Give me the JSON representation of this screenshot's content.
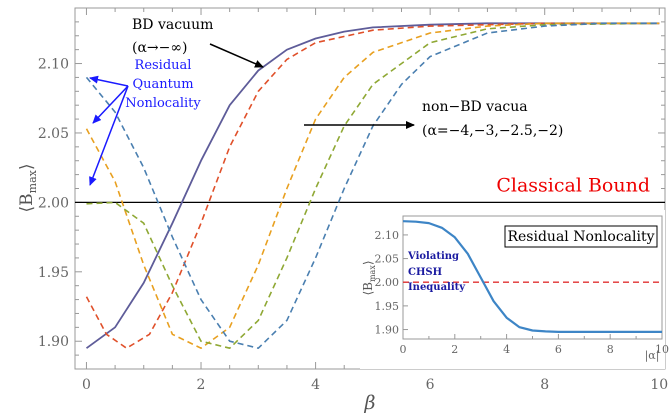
{
  "chart_data": [
    {
      "type": "line",
      "xlabel": "β",
      "ylabel": "⟨B",
      "ylabel_sub": "max",
      "ylabel_close": "⟩",
      "xlim": [
        -0.2,
        10.1
      ],
      "ylim": [
        1.88,
        2.14
      ],
      "xticks": [
        "0",
        "2",
        "4",
        "6",
        "8",
        "10"
      ],
      "yticks": [
        "1.90",
        "1.95",
        "2.00",
        "2.05",
        "2.10"
      ],
      "classical_bound": {
        "value": 2.0,
        "label": "Classical Bound",
        "color": "#ee0000"
      },
      "series": [
        {
          "name": "BD vacuum",
          "alpha": "-∞",
          "style": "solid",
          "color": "#5e5c99",
          "x": [
            0,
            0.5,
            1.0,
            1.5,
            2.0,
            2.5,
            3.0,
            3.5,
            4.0,
            4.5,
            5.0,
            6.0,
            7.0,
            8.0,
            10.0
          ],
          "y": [
            1.895,
            1.91,
            1.942,
            1.985,
            2.03,
            2.07,
            2.095,
            2.11,
            2.118,
            2.123,
            2.126,
            2.128,
            2.129,
            2.129,
            2.129
          ]
        },
        {
          "alpha": "-4",
          "style": "dashed",
          "color": "#e0502a",
          "x": [
            0,
            0.35,
            0.7,
            1.1,
            1.5,
            2.0,
            2.5,
            3.0,
            3.5,
            4.0,
            5.0,
            6.0,
            8.0,
            10.0
          ],
          "y": [
            1.932,
            1.905,
            1.895,
            1.905,
            1.935,
            1.985,
            2.04,
            2.08,
            2.103,
            2.115,
            2.124,
            2.127,
            2.129,
            2.129
          ]
        },
        {
          "alpha": "-3",
          "style": "dashed",
          "color": "#e8a020",
          "x": [
            0,
            0.5,
            1.0,
            1.5,
            2.0,
            2.5,
            3.0,
            3.5,
            4.0,
            4.5,
            5.0,
            6.0,
            7.0,
            8.0,
            10.0
          ],
          "y": [
            2.053,
            2.015,
            1.955,
            1.905,
            1.895,
            1.91,
            1.955,
            2.01,
            2.06,
            2.09,
            2.108,
            2.122,
            2.127,
            2.129,
            2.129
          ]
        },
        {
          "alpha": "-2.5",
          "style": "dashed",
          "color": "#8fa834",
          "x": [
            0,
            0.5,
            1.0,
            1.5,
            2.0,
            2.5,
            3.0,
            3.5,
            4.0,
            4.5,
            5.0,
            6.0,
            7.0,
            8.0,
            10.0
          ],
          "y": [
            1.999,
            2.0,
            1.985,
            1.94,
            1.9,
            1.895,
            1.915,
            1.96,
            2.01,
            2.055,
            2.085,
            2.115,
            2.125,
            2.128,
            2.129
          ]
        },
        {
          "alpha": "-2",
          "style": "dashed",
          "color": "#4a7fb0",
          "x": [
            0,
            0.5,
            1.0,
            1.5,
            2.0,
            2.5,
            3.0,
            3.5,
            4.0,
            4.5,
            5.0,
            5.5,
            6.0,
            7.0,
            8.0,
            9.0,
            10.0
          ],
          "y": [
            2.09,
            2.065,
            2.025,
            1.975,
            1.93,
            1.9,
            1.895,
            1.915,
            1.96,
            2.01,
            2.055,
            2.085,
            2.105,
            2.122,
            2.127,
            2.129,
            2.129
          ]
        }
      ],
      "annotations": {
        "bd_vacuum": "BD vacuum",
        "bd_vacuum_alpha": "(α→−∞)",
        "non_bd": "non−BD vacua",
        "non_bd_alpha": "(α=−4,−3,−2.5,−2)",
        "residual": [
          "Residual",
          "Quantum",
          "Nonlocality"
        ]
      }
    },
    {
      "type": "line",
      "title": "Residual Nonlocality",
      "xlabel": "|α|",
      "ylabel": "⟨B",
      "ylabel_sub": "max",
      "ylabel_close": "⟩",
      "xlim": [
        0,
        10
      ],
      "ylim": [
        1.88,
        2.14
      ],
      "xticks": [
        "0",
        "2",
        "4",
        "6",
        "8",
        "10"
      ],
      "yticks": [
        "1.90",
        "1.95",
        "2.00",
        "2.05",
        "2.10"
      ],
      "bound": 2.0,
      "note": [
        "Violating",
        "CHSH",
        "Inequality"
      ],
      "series": [
        {
          "color": "#3d85c6",
          "x": [
            0,
            0.5,
            1.0,
            1.5,
            2.0,
            2.5,
            3.0,
            3.5,
            4.0,
            4.5,
            5.0,
            5.5,
            6.0,
            7.0,
            8.0,
            10.0
          ],
          "y": [
            2.129,
            2.128,
            2.125,
            2.115,
            2.095,
            2.06,
            2.01,
            1.96,
            1.925,
            1.905,
            1.898,
            1.896,
            1.895,
            1.895,
            1.895,
            1.895
          ]
        }
      ]
    }
  ]
}
